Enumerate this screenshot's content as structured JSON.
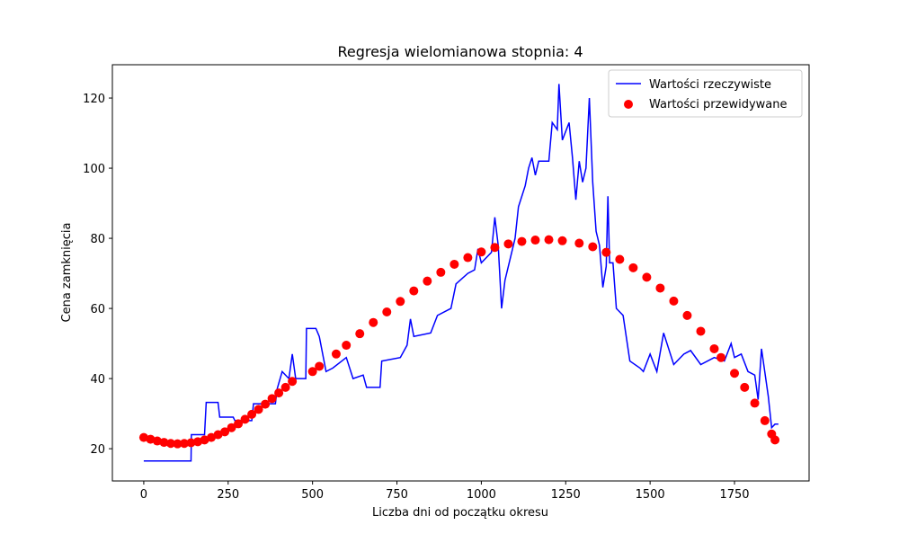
{
  "chart_data": {
    "type": "line",
    "title": "Regresja wielomianowa stopnia: 4",
    "x_label": "Liczba dni od początku okresu",
    "y_label": "Cena zamknięcia",
    "xlim": [
      -93,
      1971
    ],
    "ylim": [
      10.8,
      129.5
    ],
    "xticks": [
      0,
      250,
      500,
      750,
      1000,
      1250,
      1500,
      1750
    ],
    "yticks": [
      20,
      40,
      60,
      80,
      100,
      120
    ],
    "grid": false,
    "legend": "upper right",
    "series": [
      {
        "name": "Wartości rzeczywiste",
        "color": "#0000ff",
        "type": "line",
        "x": [
          0,
          140,
          141,
          180,
          185,
          220,
          225,
          265,
          270,
          320,
          325,
          390,
          395,
          410,
          430,
          440,
          450,
          480,
          482,
          510,
          520,
          540,
          560,
          600,
          620,
          650,
          660,
          700,
          705,
          760,
          780,
          790,
          800,
          850,
          870,
          910,
          925,
          960,
          980,
          990,
          1000,
          1030,
          1040,
          1050,
          1060,
          1070,
          1080,
          1100,
          1110,
          1130,
          1140,
          1150,
          1160,
          1170,
          1200,
          1210,
          1225,
          1230,
          1240,
          1260,
          1270,
          1280,
          1290,
          1300,
          1310,
          1320,
          1330,
          1340,
          1350,
          1360,
          1370,
          1375,
          1380,
          1390,
          1400,
          1420,
          1440,
          1470,
          1480,
          1500,
          1520,
          1540,
          1570,
          1600,
          1620,
          1650,
          1690,
          1720,
          1740,
          1750,
          1770,
          1790,
          1810,
          1820,
          1830,
          1850,
          1860,
          1870,
          1880
        ],
        "values": [
          16.5,
          16.5,
          24,
          24,
          33.2,
          33.2,
          29,
          29,
          28,
          28,
          32.8,
          32.8,
          37,
          42,
          40,
          47,
          40,
          40,
          54.3,
          54.3,
          52,
          42,
          43,
          46,
          40,
          41,
          37.5,
          37.5,
          45,
          46,
          49.5,
          57,
          52,
          53,
          58,
          60,
          67,
          70,
          71,
          77,
          73,
          76,
          86,
          78,
          60,
          68,
          72,
          80,
          89,
          95,
          100,
          103,
          98,
          102,
          102,
          113,
          111,
          124,
          108,
          113,
          103,
          91,
          102,
          96,
          100,
          120,
          96,
          82,
          78,
          66,
          72,
          92,
          73,
          73,
          60,
          58,
          45,
          43,
          42,
          47,
          42,
          53,
          44,
          47,
          48,
          44,
          46,
          45,
          50,
          46,
          47,
          42,
          41,
          34,
          48.5,
          35,
          26,
          27,
          27
        ]
      },
      {
        "name": "Wartości przewidywane",
        "color": "#ff0000",
        "type": "scatter",
        "x": [
          0,
          20,
          40,
          60,
          80,
          100,
          120,
          140,
          160,
          180,
          200,
          220,
          240,
          260,
          280,
          300,
          320,
          340,
          360,
          380,
          400,
          420,
          440,
          500,
          520,
          570,
          600,
          640,
          680,
          720,
          760,
          800,
          840,
          880,
          920,
          960,
          1000,
          1040,
          1080,
          1120,
          1160,
          1200,
          1240,
          1290,
          1330,
          1370,
          1410,
          1450,
          1490,
          1530,
          1570,
          1610,
          1650,
          1690,
          1710,
          1750,
          1780,
          1810,
          1840,
          1860,
          1870
        ],
        "values": [
          23.2,
          22.7,
          22.2,
          21.8,
          21.5,
          21.4,
          21.5,
          21.7,
          22.0,
          22.5,
          23.2,
          24.0,
          24.8,
          26.0,
          27.1,
          28.4,
          29.8,
          31.2,
          32.7,
          34.3,
          35.9,
          37.5,
          39.2,
          42,
          43.5,
          47,
          49.5,
          52.8,
          56,
          59,
          62,
          65,
          67.8,
          70.3,
          72.6,
          74.5,
          76.1,
          77.4,
          78.4,
          79.1,
          79.5,
          79.6,
          79.3,
          78.6,
          77.6,
          76.0,
          74.0,
          71.6,
          68.9,
          65.8,
          62.1,
          58.0,
          53.5,
          48.5,
          46,
          41.5,
          37.5,
          33.0,
          28.0,
          24.2,
          22.5
        ]
      }
    ]
  }
}
